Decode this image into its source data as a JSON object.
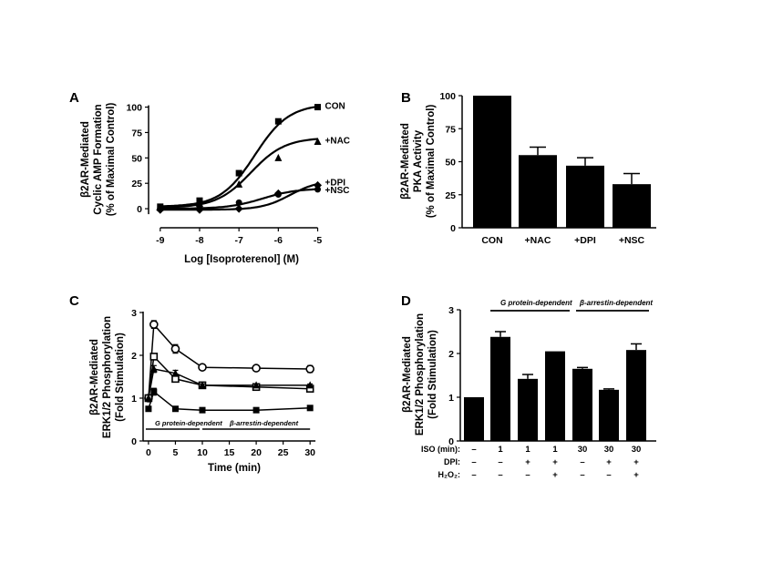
{
  "chart_data": [
    {
      "panel": "A",
      "type": "line",
      "ylabel_lines": [
        "β2AR-Mediated",
        "Cyclic AMP Formation",
        "(% of Maximal Control)"
      ],
      "xlabel": "Log [Isoproterenol] (M)",
      "x": [
        -9,
        -8,
        -7,
        -6,
        -5
      ],
      "xticks": [
        "-9",
        "-8",
        "-7",
        "-6",
        "-5"
      ],
      "yticks": [
        "0",
        "25",
        "50",
        "75",
        "100"
      ],
      "xlim": [
        -9.25,
        -4.85
      ],
      "ylim": [
        -8,
        105
      ],
      "series": [
        {
          "name": "CON",
          "marker": "square",
          "values": [
            2,
            8,
            35,
            86,
            100
          ],
          "ec50": -6.6,
          "top": 103,
          "bottom": 2,
          "slope": 1
        },
        {
          "name": "+NAC",
          "marker": "triangle",
          "values": [
            1,
            5,
            24,
            50,
            66
          ],
          "ec50": -6.7,
          "top": 70,
          "bottom": 1,
          "slope": 1
        },
        {
          "name": "+DPI",
          "marker": "diamond",
          "values": [
            -1,
            -1,
            0,
            15,
            23
          ],
          "ec50": -5.7,
          "top": 28,
          "bottom": -1,
          "slope": 1.2
        },
        {
          "name": "+NSC",
          "marker": "circle",
          "values": [
            0,
            2,
            6,
            14,
            19
          ],
          "ec50": -6.4,
          "top": 20,
          "bottom": 0,
          "slope": 1
        }
      ]
    },
    {
      "panel": "B",
      "type": "bar",
      "ylabel_lines": [
        "β2AR-Mediated",
        "PKA Activity",
        "(% of Maximal Control)"
      ],
      "categories": [
        "CON",
        "+NAC",
        "+DPI",
        "+NSC"
      ],
      "values": [
        100,
        55,
        47,
        33
      ],
      "errors": [
        0,
        6,
        6,
        8
      ],
      "yticks": [
        "0",
        "25",
        "50",
        "75",
        "100"
      ],
      "ylim": [
        0,
        100
      ]
    },
    {
      "panel": "C",
      "type": "line",
      "ylabel_lines": [
        "β2AR-Mediated",
        "ERK1/2 Phosphorylation",
        "(Fold Stimulation)"
      ],
      "xlabel": "Time (min)",
      "xticks": [
        "0",
        "5",
        "10",
        "15",
        "20",
        "25",
        "30"
      ],
      "yticks": [
        "0",
        "1",
        "2",
        "3"
      ],
      "xlim": [
        -1,
        32
      ],
      "ylim": [
        0,
        3
      ],
      "annotations": [
        "G protein-dependent",
        "β-arrestin-dependent"
      ],
      "series": [
        {
          "marker": "open-circle",
          "x": [
            0,
            1,
            5,
            10,
            20,
            30
          ],
          "values": [
            1.0,
            2.72,
            2.15,
            1.72,
            1.7,
            1.68
          ],
          "errors": [
            0,
            0.09,
            0.1,
            0.03,
            0.06,
            0.08
          ]
        },
        {
          "marker": "open-square",
          "x": [
            0,
            1,
            5,
            10,
            20,
            30
          ],
          "values": [
            1.0,
            1.97,
            1.45,
            1.3,
            1.26,
            1.22
          ],
          "errors": [
            0,
            0.05,
            0.07,
            0.04,
            0.05,
            0.04
          ]
        },
        {
          "marker": "filled-triangle",
          "x": [
            0,
            1,
            5,
            10,
            20,
            30
          ],
          "values": [
            1.0,
            1.68,
            1.58,
            1.3,
            1.3,
            1.3
          ],
          "errors": [
            0,
            0.08,
            0.07,
            0.03,
            0.03,
            0.03
          ]
        },
        {
          "marker": "filled-square",
          "x": [
            0,
            1,
            5,
            10,
            20,
            30
          ],
          "values": [
            0.75,
            1.15,
            0.75,
            0.72,
            0.72,
            0.77
          ],
          "errors": [
            0,
            0.08,
            0.03,
            0.02,
            0.02,
            0.03
          ]
        }
      ]
    },
    {
      "panel": "D",
      "type": "bar",
      "ylabel_lines": [
        "β2AR-Mediated",
        "ERK1/2 Phosphorylation",
        "(Fold Stimulation)"
      ],
      "values": [
        1.0,
        2.38,
        1.42,
        2.05,
        1.65,
        1.17,
        2.08
      ],
      "errors": [
        0,
        0.12,
        0.1,
        0,
        0.03,
        0.02,
        0.14
      ],
      "yticks": [
        "0",
        "1",
        "2",
        "3"
      ],
      "ylim": [
        0,
        3
      ],
      "annotations": [
        "G protein-dependent",
        "β-arrestin-dependent"
      ],
      "rows": [
        {
          "label": "ISO (min):",
          "cells": [
            "–",
            "1",
            "1",
            "1",
            "30",
            "30",
            "30"
          ]
        },
        {
          "label": "DPI:",
          "cells": [
            "–",
            "–",
            "+",
            "+",
            "–",
            "+",
            "+"
          ]
        },
        {
          "label": "H₂O₂:",
          "cells": [
            "–",
            "–",
            "–",
            "+",
            "–",
            "–",
            "+"
          ]
        }
      ]
    }
  ]
}
